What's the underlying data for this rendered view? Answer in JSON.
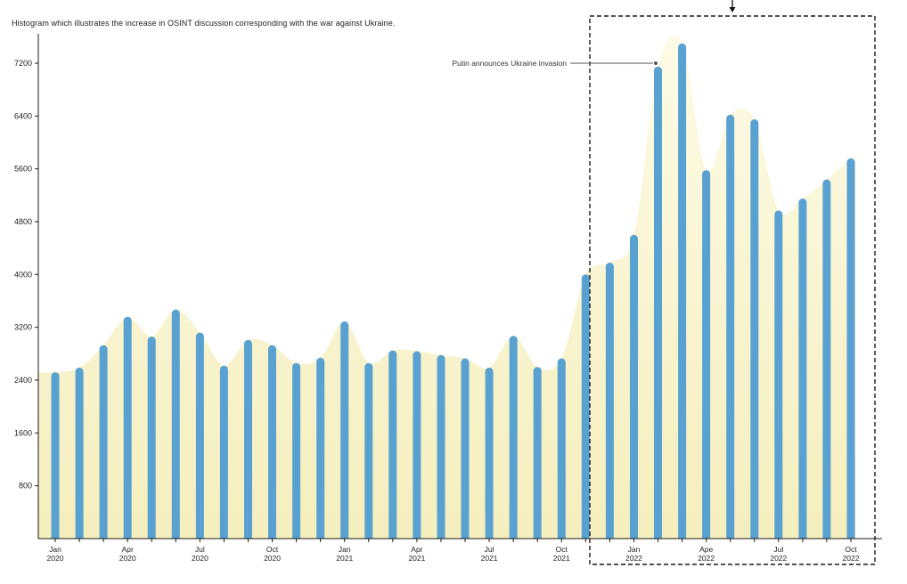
{
  "chart_data": {
    "type": "bar",
    "title": "Histogram which illustrates the increase in OSINT discussion corresponding with the war against Ukraine.",
    "x_months": [
      "Jan 2020",
      "Feb 2020",
      "Mar 2020",
      "Apr 2020",
      "May 2020",
      "Jun 2020",
      "Jul 2020",
      "Aug 2020",
      "Sep 2020",
      "Oct 2020",
      "Nov 2020",
      "Dec 2020",
      "Jan 2021",
      "Feb 2021",
      "Mar 2021",
      "Apr 2021",
      "May 2021",
      "Jun 2021",
      "Jul 2021",
      "Aug 2021",
      "Sep 2021",
      "Oct 2021",
      "Nov 2021",
      "Dec 2021",
      "Jan 2022",
      "Feb 2022",
      "Mar 2022",
      "Apr 2022",
      "May 2022",
      "Jun 2022",
      "Jul 2022",
      "Aug 2022",
      "Sep 2022",
      "Oct 2022"
    ],
    "values": [
      2520,
      2590,
      2930,
      3360,
      3060,
      3470,
      3120,
      2620,
      3010,
      2930,
      2660,
      2740,
      3290,
      2660,
      2850,
      2840,
      2780,
      2730,
      2590,
      3070,
      2600,
      2730,
      4000,
      4180,
      4600,
      7150,
      7500,
      5580,
      6420,
      6350,
      4970,
      5150,
      5440,
      5760
    ],
    "y_ticks": [
      800,
      1600,
      2400,
      3200,
      4000,
      4800,
      5600,
      6400,
      7200
    ],
    "ylim": [
      0,
      7600
    ],
    "grid": false,
    "legend": null,
    "x_tick_labels": [
      {
        "index": 0,
        "line1": "Jan",
        "line2": "2020"
      },
      {
        "index": 3,
        "line1": "Apr",
        "line2": "2020"
      },
      {
        "index": 6,
        "line1": "Jul",
        "line2": "2020"
      },
      {
        "index": 9,
        "line1": "Oct",
        "line2": "2020"
      },
      {
        "index": 12,
        "line1": "Jan",
        "line2": "2021"
      },
      {
        "index": 15,
        "line1": "Apr",
        "line2": "2021"
      },
      {
        "index": 18,
        "line1": "Jul",
        "line2": "2021"
      },
      {
        "index": 21,
        "line1": "Oct",
        "line2": "2021"
      },
      {
        "index": 24,
        "line1": "Jan",
        "line2": "2022"
      },
      {
        "index": 27,
        "line1": "Ape",
        "line2": "2022"
      },
      {
        "index": 30,
        "line1": "Jul",
        "line2": "2022"
      },
      {
        "index": 33,
        "line1": "Oct",
        "line2": "2022"
      }
    ],
    "annotation": {
      "text": "Putin announces Ukraine invasion",
      "bar_index": 25
    },
    "highlight_region": {
      "start_bar_index": 23,
      "end_bar_index": 33,
      "style": "dashed-box",
      "marker": "down-arrow"
    },
    "colors": {
      "bar": "#59a1d0",
      "area_top": "#fdfbe7",
      "area_bottom": "#f5eebd",
      "axis": "#1a1a1a",
      "dashed_box": "#1a1a1a",
      "annotation_line": "#555555",
      "text": "#222222"
    }
  }
}
